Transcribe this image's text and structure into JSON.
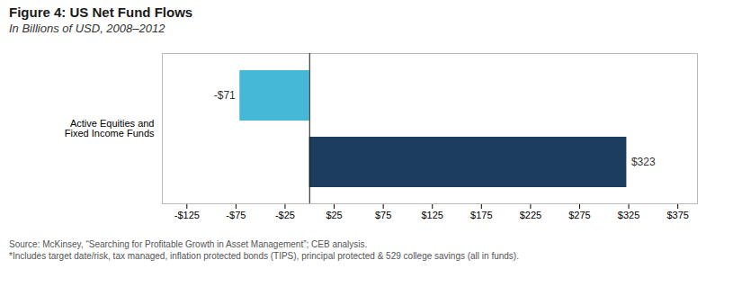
{
  "chart_data": {
    "type": "bar",
    "orientation": "horizontal",
    "title": "Figure 4: US Net Fund Flows",
    "subtitle": "In Billions of USD, 2008–2012",
    "caption": [
      "Source: McKinsey, “Searching for Profitable Growth in Asset Management”; CEB analysis.",
      "*Includes target date/risk, tax managed, inflation protected bonds (TIPS), principal protected & 529 college savings (all in funds)."
    ],
    "categories": [
      "Active Equities and\nFixed Income Funds"
    ],
    "series": [
      {
        "color": "#45b8d8",
        "values": [
          -71
        ],
        "value_labels": [
          "-$71"
        ]
      },
      {
        "color": "#1c3d5e",
        "values": [
          323
        ],
        "value_labels": [
          "$323"
        ]
      }
    ],
    "data_labels": true,
    "xlim": [
      -150,
      395
    ],
    "xticks": [
      {
        "value": -125,
        "label": "-$125"
      },
      {
        "value": -75,
        "label": "-$75"
      },
      {
        "value": -25,
        "label": "-$25"
      },
      {
        "value": 25,
        "label": "$25"
      },
      {
        "value": 75,
        "label": "$75"
      },
      {
        "value": 125,
        "label": "$125"
      },
      {
        "value": 175,
        "label": "$175"
      },
      {
        "value": 225,
        "label": "$225"
      },
      {
        "value": 275,
        "label": "$275"
      },
      {
        "value": 325,
        "label": "$325"
      },
      {
        "value": 375,
        "label": "$375"
      }
    ],
    "grid": false
  }
}
